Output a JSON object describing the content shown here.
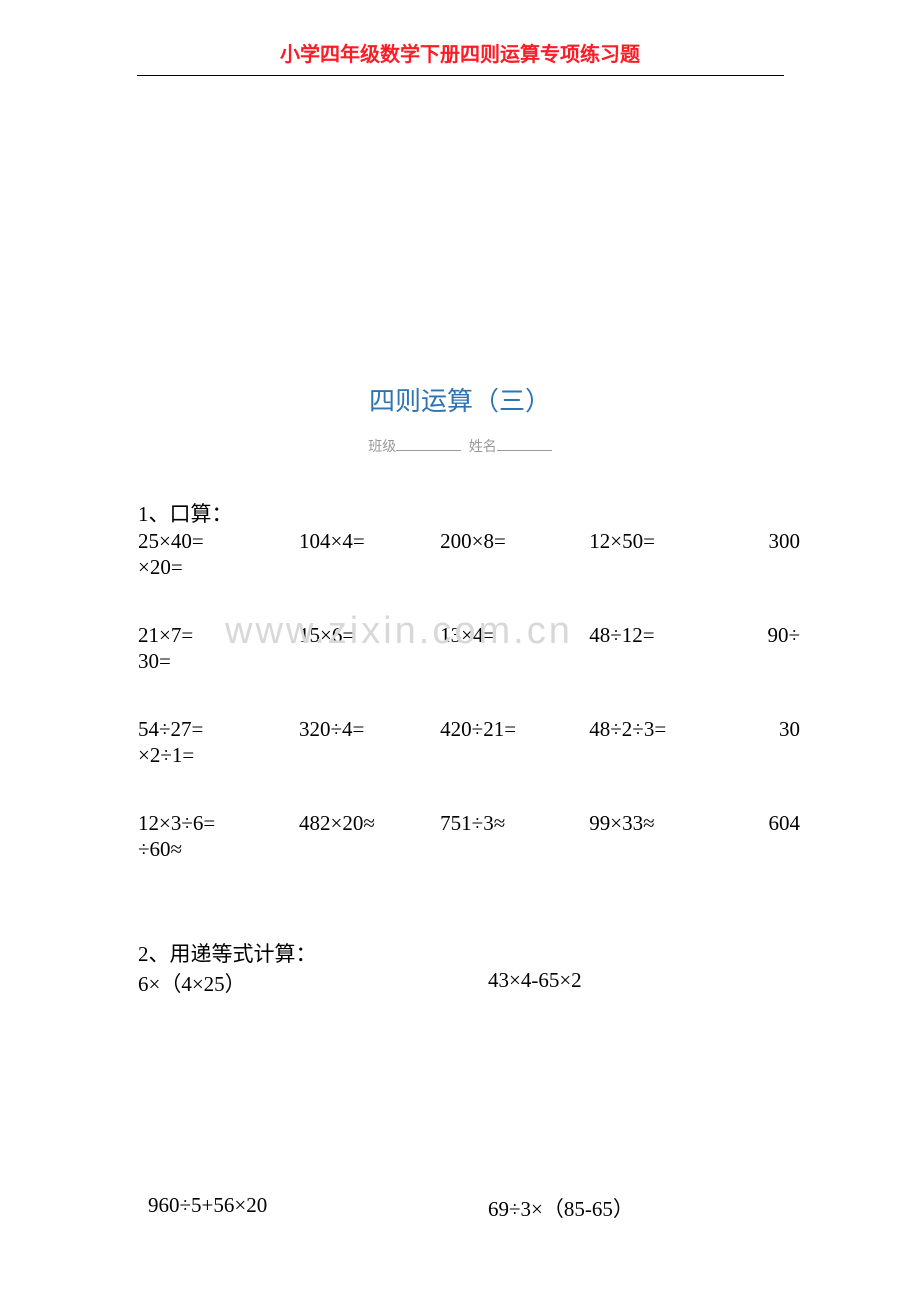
{
  "header": {
    "title": "小学四年级数学下册四则运算专项练习题",
    "text_color": "#fc1c26",
    "font_size": 20
  },
  "title": {
    "text": "四则运算（三）",
    "text_color": "#2e74b5",
    "font_size": 26
  },
  "info": {
    "class_label": "班级",
    "name_label": "姓名",
    "text_color": "#999999",
    "font_size": 14
  },
  "watermark": {
    "text": "www.zixin.com.cn",
    "text_color": "#d8d8d8",
    "font_size": 38
  },
  "section1": {
    "label": "1、口算：",
    "rows": [
      {
        "c1": "25×40=",
        "c2": "104×4=",
        "c3": "200×8=",
        "c4": "12×50=",
        "c5": "300",
        "wrap": "×20="
      },
      {
        "c1": "21×7=",
        "c2": "15×6=",
        "c3": "13×4=",
        "c4": "48÷12=",
        "c5": "90÷",
        "wrap": "30="
      },
      {
        "c1": "54÷27=",
        "c2": "320÷4=",
        "c3": "420÷21=",
        "c4": "48÷2÷3=",
        "c5": "30",
        "wrap": "×2÷1="
      },
      {
        "c1": "12×3÷6=",
        "c2": "482×20≈",
        "c3": "751÷3≈",
        "c4": "99×33≈",
        "c5": "604",
        "wrap": "÷60≈"
      }
    ]
  },
  "section2": {
    "label": "2、用递等式计算：",
    "rows": [
      {
        "e1": "6×（4×25）",
        "e2": "43×4-65×2"
      },
      {
        "e1": "960÷5+56×20",
        "e2": "69÷3×（85-65）"
      }
    ]
  },
  "style": {
    "body_font_size": 21,
    "body_text_color": "#000000",
    "background_color": "#ffffff"
  }
}
